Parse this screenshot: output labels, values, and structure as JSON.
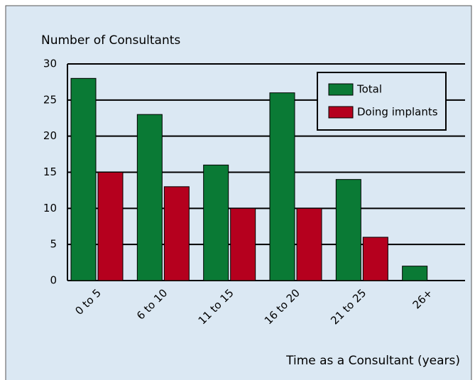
{
  "chart_data": {
    "type": "bar",
    "y_label": "Number of Consultants",
    "x_label": "Time as a Consultant (years)",
    "categories": [
      "0 to 5",
      "6 to 10",
      "11 to 15",
      "16 to 20",
      "21 to 25",
      "26+"
    ],
    "series": [
      {
        "name": "Total",
        "color": "#0a7a35",
        "values": [
          28,
          23,
          16,
          26,
          14,
          2
        ]
      },
      {
        "name": "Doing implants",
        "color": "#b5001e",
        "values": [
          15,
          13,
          10,
          10,
          6,
          0
        ]
      }
    ],
    "ylim": [
      0,
      30
    ],
    "yticks": [
      0,
      5,
      10,
      15,
      20,
      25,
      30
    ],
    "grid": true,
    "legend": "upper right"
  }
}
